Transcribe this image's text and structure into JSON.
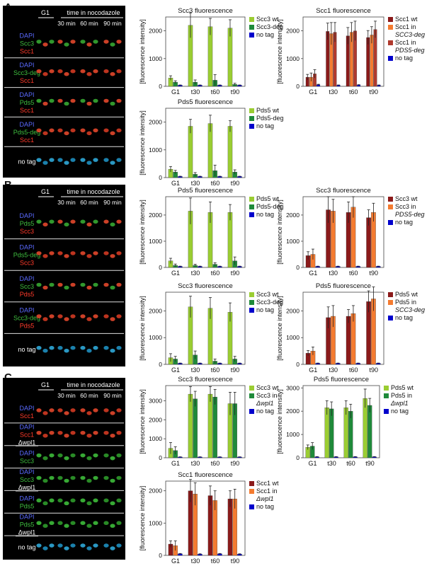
{
  "panels": [
    {
      "letter": "A",
      "micro": {
        "header": [
          "G1",
          "time in nocodazole",
          "30 min",
          "60 min",
          "90 min"
        ],
        "groups": [
          {
            "labels": [
              {
                "text": "DAPI",
                "color": "#5a6aff"
              },
              {
                "text": "Scc3",
                "color": "#3fbf3f"
              },
              {
                "text": "Scc1",
                "color": "#ff3a2a"
              }
            ],
            "cells": "green-red"
          },
          {
            "labels": [
              {
                "text": "DAPI",
                "color": "#5a6aff"
              },
              {
                "text": "Scc3-deg",
                "color": "#3fbf3f"
              },
              {
                "text": "Scc1",
                "color": "#ff3a2a"
              }
            ],
            "cells": "red"
          },
          {
            "labels": [
              {
                "text": "DAPI",
                "color": "#5a6aff"
              },
              {
                "text": "Pds5",
                "color": "#3fbf3f"
              },
              {
                "text": "Scc1",
                "color": "#ff3a2a"
              }
            ],
            "cells": "green-red"
          },
          {
            "labels": [
              {
                "text": "DAPI",
                "color": "#5a6aff"
              },
              {
                "text": "Pds5-deg",
                "color": "#3fbf3f"
              },
              {
                "text": "Scc1",
                "color": "#ff3a2a"
              }
            ],
            "cells": "red"
          },
          {
            "labels": [
              {
                "text": "no tag",
                "color": "#ffffff"
              }
            ],
            "cells": "blue"
          }
        ]
      }
    },
    {
      "letter": "B",
      "micro": {
        "header": [
          "G1",
          "time in nocodazole",
          "30 min",
          "60 min",
          "90 min"
        ],
        "groups": [
          {
            "labels": [
              {
                "text": "DAPI",
                "color": "#5a6aff"
              },
              {
                "text": "Pds5",
                "color": "#3fbf3f"
              },
              {
                "text": "Scc3",
                "color": "#ff3a2a"
              }
            ],
            "cells": "green-red"
          },
          {
            "labels": [
              {
                "text": "DAPI",
                "color": "#5a6aff"
              },
              {
                "text": "Pds5-deg",
                "color": "#3fbf3f"
              },
              {
                "text": "Scc3",
                "color": "#ff3a2a"
              }
            ],
            "cells": "red"
          },
          {
            "labels": [
              {
                "text": "DAPI",
                "color": "#5a6aff"
              },
              {
                "text": "Scc3",
                "color": "#3fbf3f"
              },
              {
                "text": "Pds5",
                "color": "#ff3a2a"
              }
            ],
            "cells": "green-red"
          },
          {
            "labels": [
              {
                "text": "DAPI",
                "color": "#5a6aff"
              },
              {
                "text": "Scc3-deg",
                "color": "#3fbf3f"
              },
              {
                "text": "Pds5",
                "color": "#ff3a2a"
              }
            ],
            "cells": "red"
          },
          {
            "labels": [
              {
                "text": "no tag",
                "color": "#ffffff"
              }
            ],
            "cells": "blue"
          }
        ]
      }
    },
    {
      "letter": "C",
      "micro": {
        "header": [
          "G1",
          "time in nocodazole",
          "30 min",
          "60 min",
          "90 min"
        ],
        "groups": [
          {
            "labels": [
              {
                "text": "DAPI",
                "color": "#5a6aff"
              },
              {
                "text": "Scc1",
                "color": "#ff3a2a"
              }
            ],
            "cells": "red"
          },
          {
            "labels": [
              {
                "text": "DAPI",
                "color": "#5a6aff"
              },
              {
                "text": "Scc1",
                "color": "#ff3a2a"
              },
              {
                "text": "Δwpl1",
                "color": "#ffffff",
                "underline": true
              }
            ],
            "cells": "red"
          },
          {
            "labels": [
              {
                "text": "DAPI",
                "color": "#5a6aff"
              },
              {
                "text": "Scc3",
                "color": "#3fbf3f"
              }
            ],
            "cells": "green"
          },
          {
            "labels": [
              {
                "text": "DAPI",
                "color": "#5a6aff"
              },
              {
                "text": "Scc3",
                "color": "#3fbf3f"
              },
              {
                "text": "Δwpl1",
                "color": "#ffffff",
                "underline": true
              }
            ],
            "cells": "green"
          },
          {
            "labels": [
              {
                "text": "DAPI",
                "color": "#5a6aff"
              },
              {
                "text": "Pds5",
                "color": "#3fbf3f"
              }
            ],
            "cells": "green"
          },
          {
            "labels": [
              {
                "text": "DAPI",
                "color": "#5a6aff"
              },
              {
                "text": "Pds5",
                "color": "#3fbf3f"
              },
              {
                "text": "Δwpl1",
                "color": "#ffffff",
                "underline": true
              }
            ],
            "cells": "green"
          },
          {
            "labels": [
              {
                "text": "no tag",
                "color": "#ffffff"
              }
            ],
            "cells": "blue"
          }
        ]
      }
    }
  ],
  "chart_data": [
    {
      "id": "A-scc3",
      "type": "bar",
      "title": "Scc3 fluorescence",
      "ylabel": "[fluorescence intensity]",
      "ylim": [
        0,
        2500
      ],
      "yticks": [
        0,
        1000,
        2000
      ],
      "categories": [
        "G1",
        "t30",
        "t60",
        "t90"
      ],
      "series": [
        {
          "name": "Scc3 wt",
          "color": "#9acd32",
          "values": [
            300,
            2200,
            2150,
            2100
          ],
          "errors": [
            80,
            450,
            300,
            300
          ]
        },
        {
          "name": "Scc3-deg",
          "color": "#1f8a3a",
          "values": [
            150,
            150,
            220,
            70
          ],
          "errors": [
            50,
            80,
            200,
            40
          ]
        },
        {
          "name": "no tag",
          "color": "#0000cc",
          "values": [
            40,
            40,
            40,
            40
          ],
          "errors": [
            10,
            10,
            10,
            10
          ]
        }
      ]
    },
    {
      "id": "A-scc1",
      "type": "bar",
      "title": "Scc1 fluorescence",
      "ylabel": "[fluorescence intensity]",
      "ylim": [
        0,
        2500
      ],
      "yticks": [
        0,
        1000,
        2000
      ],
      "categories": [
        "G1",
        "t30",
        "t60",
        "t90"
      ],
      "series": [
        {
          "name": "Scc1 wt",
          "color": "#8b1a1a",
          "values": [
            330,
            1980,
            1820,
            1760
          ],
          "errors": [
            100,
            300,
            300,
            250
          ]
        },
        {
          "name": "Scc1 in",
          "name_line2": "SCC3-deg",
          "color": "#f47b30",
          "values": [
            330,
            1900,
            1950,
            1850
          ],
          "errors": [
            150,
            400,
            350,
            300
          ]
        },
        {
          "name": "Scc1 in",
          "name_line2": "PDS5-deg",
          "color": "#b03a2e",
          "values": [
            450,
            1950,
            2000,
            2050
          ],
          "errors": [
            150,
            350,
            350,
            300
          ]
        },
        {
          "name": "no tag",
          "color": "#0000cc",
          "values": [
            60,
            40,
            50,
            40
          ],
          "errors": [
            15,
            10,
            10,
            10
          ]
        }
      ]
    },
    {
      "id": "A-pds5",
      "type": "bar",
      "title": "Pds5 fluorescence",
      "ylabel": "[fluorescence intensity]",
      "ylim": [
        0,
        2500
      ],
      "yticks": [
        0,
        1000,
        2000
      ],
      "categories": [
        "G1",
        "t30",
        "t60",
        "t90"
      ],
      "series": [
        {
          "name": "Pds5 wt",
          "color": "#9acd32",
          "values": [
            300,
            1850,
            1950,
            1850
          ],
          "errors": [
            100,
            250,
            300,
            200
          ]
        },
        {
          "name": "Pds5-deg",
          "color": "#1f8a3a",
          "values": [
            200,
            120,
            250,
            200
          ],
          "errors": [
            60,
            60,
            200,
            80
          ]
        },
        {
          "name": "no tag",
          "color": "#0000cc",
          "values": [
            40,
            40,
            40,
            40
          ],
          "errors": [
            10,
            10,
            10,
            10
          ]
        }
      ]
    },
    {
      "id": "B-pds5",
      "type": "bar",
      "title": "Pds5 fluorescence",
      "ylabel": "[fluorescence intensity]",
      "ylim": [
        0,
        2700
      ],
      "yticks": [
        0,
        1000,
        2000
      ],
      "categories": [
        "G1",
        "t30",
        "t60",
        "t90"
      ],
      "series": [
        {
          "name": "Pds5 wt",
          "color": "#9acd32",
          "values": [
            250,
            2150,
            2100,
            2100
          ],
          "errors": [
            100,
            500,
            400,
            300
          ]
        },
        {
          "name": "Pds5-deg",
          "color": "#1f8a3a",
          "values": [
            80,
            80,
            120,
            250
          ],
          "errors": [
            50,
            40,
            60,
            150
          ]
        },
        {
          "name": "no tag",
          "color": "#0000cc",
          "values": [
            40,
            40,
            40,
            40
          ],
          "errors": [
            10,
            10,
            10,
            10
          ]
        }
      ]
    },
    {
      "id": "B-scc3",
      "type": "bar",
      "title": "Scc3 fluorescence",
      "ylabel": "[fluorescence intensity]",
      "ylim": [
        0,
        2700
      ],
      "yticks": [
        0,
        1000,
        2000
      ],
      "categories": [
        "G1",
        "t30",
        "t60",
        "t90"
      ],
      "series": [
        {
          "name": "Scc3 wt",
          "color": "#8b1a1a",
          "values": [
            450,
            2200,
            2100,
            1900
          ],
          "errors": [
            150,
            500,
            400,
            300
          ]
        },
        {
          "name": "Scc3 in",
          "name_line2": "PDS5-deg",
          "color": "#f47b30",
          "values": [
            500,
            2150,
            2300,
            2100
          ],
          "errors": [
            200,
            450,
            400,
            350
          ]
        },
        {
          "name": "no tag",
          "color": "#0000cc",
          "values": [
            40,
            40,
            40,
            40
          ],
          "errors": [
            10,
            10,
            10,
            10
          ]
        }
      ]
    },
    {
      "id": "B-scc3b",
      "type": "bar",
      "title": "Scc3 fluorescence",
      "ylabel": "[fluorescence intensity]",
      "ylim": [
        0,
        2700
      ],
      "yticks": [
        0,
        1000,
        2000
      ],
      "categories": [
        "G1",
        "t30",
        "t60",
        "t90"
      ],
      "series": [
        {
          "name": "Scc3 wt",
          "color": "#9acd32",
          "values": [
            250,
            2150,
            2100,
            1950
          ],
          "errors": [
            150,
            400,
            400,
            350
          ]
        },
        {
          "name": "Scc3-deg",
          "color": "#1f8a3a",
          "values": [
            200,
            350,
            120,
            200
          ],
          "errors": [
            100,
            150,
            80,
            100
          ]
        },
        {
          "name": "no tag",
          "color": "#0000cc",
          "values": [
            40,
            40,
            40,
            40
          ],
          "errors": [
            10,
            10,
            10,
            10
          ]
        }
      ]
    },
    {
      "id": "B-pds5b",
      "type": "bar",
      "title": "Pds5 fluorescence",
      "ylabel": "[fluorescence intensity]",
      "ylim": [
        0,
        2700
      ],
      "yticks": [
        0,
        1000,
        2000
      ],
      "categories": [
        "G1",
        "t30",
        "t60",
        "t90"
      ],
      "series": [
        {
          "name": "Pds5 wt",
          "color": "#8b1a1a",
          "values": [
            420,
            1750,
            1800,
            2350
          ],
          "errors": [
            100,
            400,
            250,
            400
          ]
        },
        {
          "name": "Pds5 in",
          "name_line2": "SCC3-deg",
          "color": "#f47b30",
          "values": [
            500,
            1800,
            1900,
            2450
          ],
          "errors": [
            150,
            400,
            300,
            450
          ]
        },
        {
          "name": "no tag",
          "color": "#0000cc",
          "values": [
            40,
            40,
            40,
            40
          ],
          "errors": [
            10,
            10,
            10,
            10
          ]
        }
      ]
    },
    {
      "id": "C-scc3",
      "type": "bar",
      "title": "Scc3 fluorescence",
      "ylabel": "[fluorescence intensity]",
      "ylim": [
        0,
        3800
      ],
      "yticks": [
        0,
        1000,
        2000,
        3000
      ],
      "categories": [
        "G1",
        "t30",
        "t60",
        "t90"
      ],
      "series": [
        {
          "name": "Scc3 wt",
          "color": "#9acd32",
          "values": [
            500,
            3350,
            3350,
            2850
          ],
          "errors": [
            300,
            400,
            400,
            600
          ]
        },
        {
          "name": "Scc3 in",
          "name_line2": "Δwpl1",
          "color": "#1f8a3a",
          "values": [
            380,
            3100,
            3200,
            2850
          ],
          "errors": [
            200,
            400,
            400,
            600
          ]
        },
        {
          "name": "no tag",
          "color": "#0000cc",
          "values": [
            40,
            40,
            40,
            40
          ],
          "errors": [
            10,
            10,
            10,
            10
          ]
        }
      ]
    },
    {
      "id": "C-pds5",
      "type": "bar",
      "title": "Pds5 fluorescence",
      "ylabel": "[fluorescence intensity]",
      "ylim": [
        0,
        3100
      ],
      "yticks": [
        0,
        1000,
        2000,
        3000
      ],
      "categories": [
        "G1",
        "t30",
        "t60",
        "t90"
      ],
      "series": [
        {
          "name": "Pds5 wt",
          "color": "#9acd32",
          "values": [
            450,
            2150,
            2150,
            2550
          ],
          "errors": [
            100,
            300,
            300,
            400
          ]
        },
        {
          "name": "Pds5 in",
          "name_line2": "Δwpl1",
          "color": "#1f8a3a",
          "values": [
            500,
            2100,
            2000,
            2250
          ],
          "errors": [
            150,
            300,
            300,
            300
          ]
        },
        {
          "name": "no tag",
          "color": "#0000cc",
          "values": [
            40,
            40,
            40,
            40
          ],
          "errors": [
            10,
            10,
            10,
            10
          ]
        }
      ]
    },
    {
      "id": "C-scc1",
      "type": "bar",
      "title": "Scc1 fluorescence",
      "ylabel": "[fluorescence intensity]",
      "ylim": [
        0,
        2300
      ],
      "yticks": [
        0,
        1000,
        2000
      ],
      "categories": [
        "G1",
        "t30",
        "t60",
        "t90"
      ],
      "series": [
        {
          "name": "Scc1 wt",
          "color": "#8b1a1a",
          "values": [
            350,
            2000,
            1850,
            1750
          ],
          "errors": [
            100,
            350,
            300,
            250
          ]
        },
        {
          "name": "Scc1 in",
          "name_line2": "Δwpl1",
          "color": "#f47b30",
          "values": [
            300,
            1900,
            1700,
            1750
          ],
          "errors": [
            150,
            350,
            300,
            300
          ]
        },
        {
          "name": "no tag",
          "color": "#0000cc",
          "values": [
            50,
            40,
            50,
            40
          ],
          "errors": [
            10,
            10,
            10,
            10
          ]
        }
      ]
    }
  ]
}
